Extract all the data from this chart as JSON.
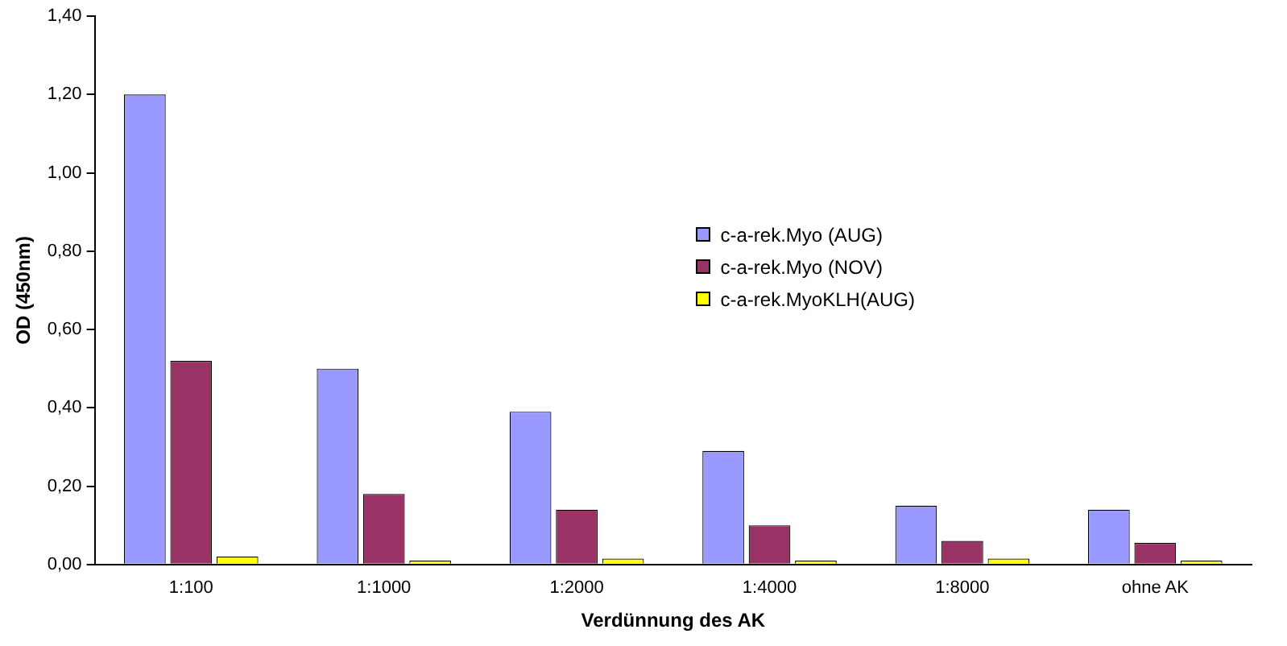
{
  "chart_data": {
    "type": "bar",
    "xlabel": "Verdünnung des AK",
    "ylabel": "OD (450nm)",
    "categories": [
      "1:100",
      "1:1000",
      "1:2000",
      "1:4000",
      "1:8000",
      "ohne AK"
    ],
    "series": [
      {
        "name": "c-a-rek.Myo (AUG)",
        "color": "#9999ff",
        "values": [
          1.2,
          0.5,
          0.39,
          0.29,
          0.15,
          0.14
        ]
      },
      {
        "name": "c-a-rek.Myo (NOV)",
        "color": "#993366",
        "values": [
          0.52,
          0.18,
          0.14,
          0.1,
          0.06,
          0.055
        ]
      },
      {
        "name": "c-a-rek.MyoKLH(AUG)",
        "color": "#ffff00",
        "values": [
          0.02,
          0.01,
          0.015,
          0.01,
          0.015,
          0.01
        ]
      }
    ],
    "ylim": [
      0,
      1.4
    ],
    "yticks": [
      {
        "value": 0,
        "label": "0,00"
      },
      {
        "value": 0.2,
        "label": "0,20"
      },
      {
        "value": 0.4,
        "label": "0,40"
      },
      {
        "value": 0.6,
        "label": "0,60"
      },
      {
        "value": 0.8,
        "label": "0,80"
      },
      {
        "value": 1,
        "label": "1,00"
      },
      {
        "value": 1.2,
        "label": "1,20"
      },
      {
        "value": 1.4,
        "label": "1,40"
      }
    ],
    "grid": false,
    "legend": "center"
  }
}
